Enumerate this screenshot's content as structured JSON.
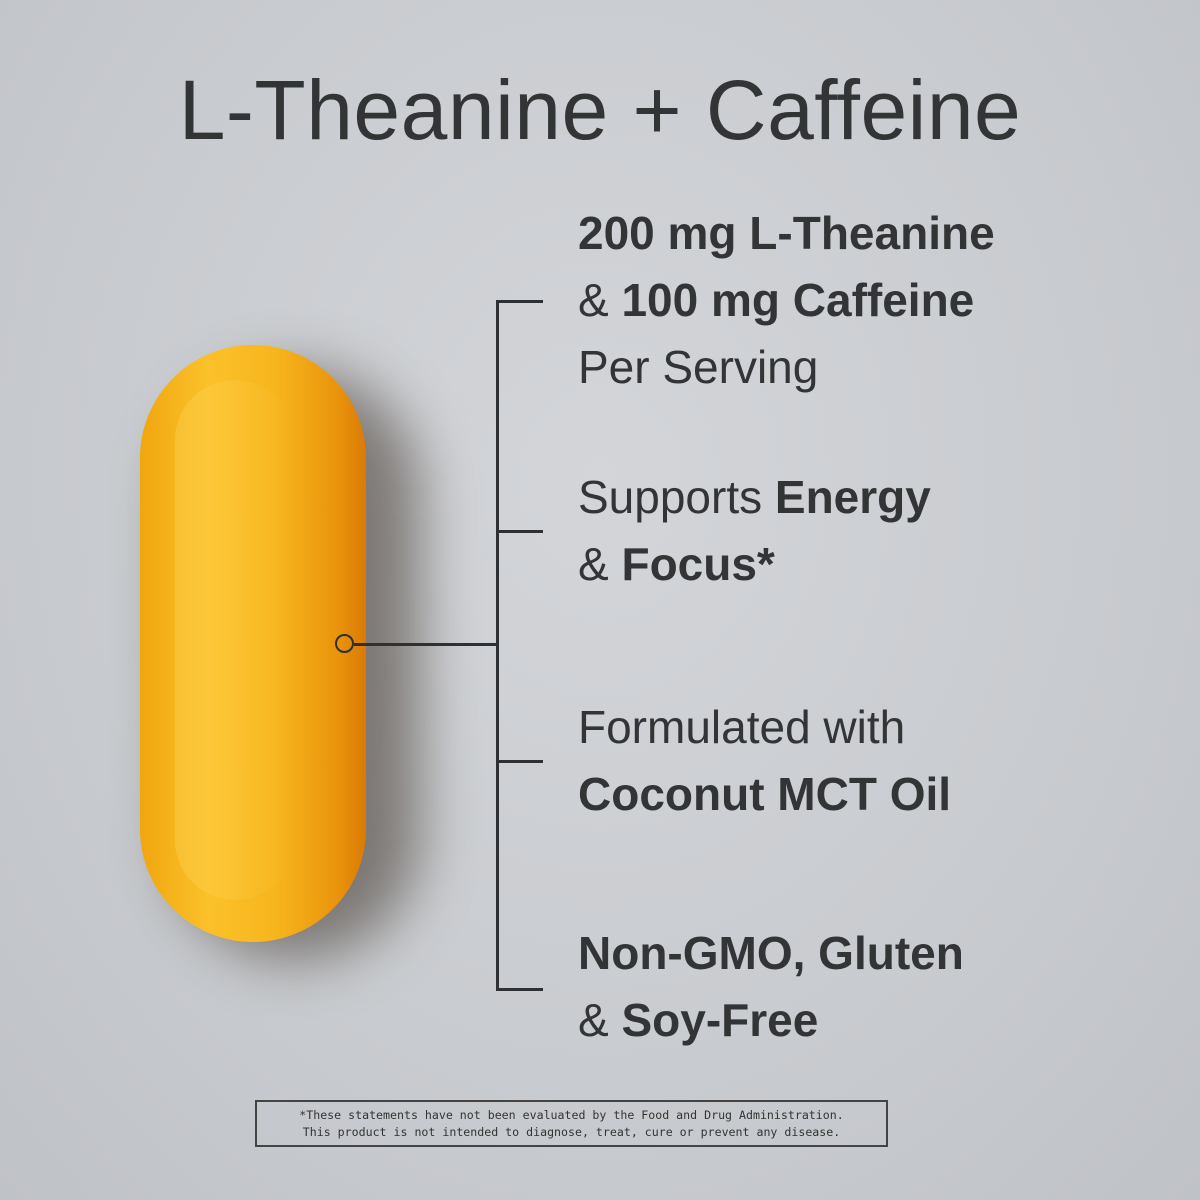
{
  "title": "L-Theanine + Caffeine",
  "features": [
    {
      "line1_bold": "200 mg L-Theanine",
      "line2_pre": "& ",
      "line2_bold": "100 mg Caffeine",
      "line3": "Per Serving"
    },
    {
      "line1_pre": "Supports ",
      "line1_bold": "Energy",
      "line2_pre": "& ",
      "line2_bold": "Focus*"
    },
    {
      "line1": "Formulated with",
      "line2_bold": "Coconut MCT Oil"
    },
    {
      "line1_bold": "Non-GMO, Gluten",
      "line2_pre": "& ",
      "line2_bold": "Soy-Free"
    }
  ],
  "disclaimer": {
    "line1": "*These statements have not been evaluated by the Food and Drug Administration.",
    "line2": "This product is not intended to diagnose, treat, cure or prevent any disease."
  },
  "colors": {
    "background": "#c9ccd0",
    "text": "#333436",
    "softgel": "#f7b51d"
  }
}
